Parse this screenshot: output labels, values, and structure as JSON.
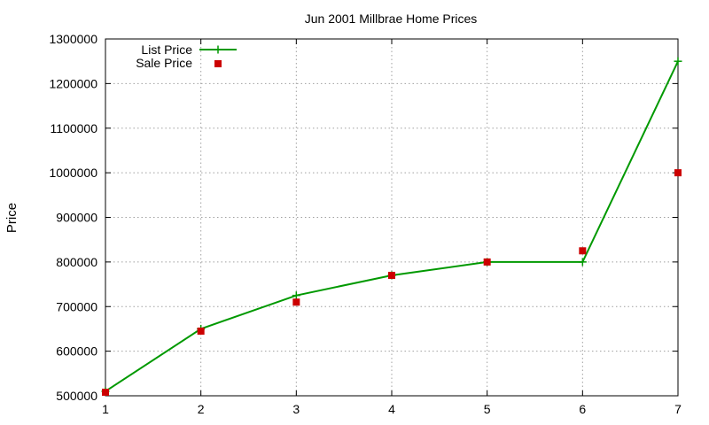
{
  "chart_data": {
    "type": "line",
    "title": "Jun 2001 Millbrae Home Prices",
    "xlabel": "",
    "ylabel": "Price",
    "xlim": [
      1,
      7
    ],
    "ylim": [
      500000,
      1300000
    ],
    "x_ticks": [
      "1",
      "2",
      "3",
      "4",
      "5",
      "6",
      "7"
    ],
    "y_ticks": [
      "500000",
      "600000",
      "700000",
      "800000",
      "900000",
      "1000000",
      "1100000",
      "1200000",
      "1300000"
    ],
    "grid": true,
    "legend_position": "top-left",
    "x": [
      1,
      2,
      3,
      4,
      5,
      6,
      7
    ],
    "series": [
      {
        "name": "List Price",
        "style": "line-with-plus-markers",
        "color": "#009900",
        "values": [
          510000,
          650000,
          725000,
          770000,
          800000,
          800000,
          1250000
        ]
      },
      {
        "name": "Sale Price",
        "style": "square-markers",
        "color": "#cc0000",
        "values": [
          508000,
          645000,
          710000,
          770000,
          800000,
          825000,
          1000000
        ]
      }
    ]
  }
}
